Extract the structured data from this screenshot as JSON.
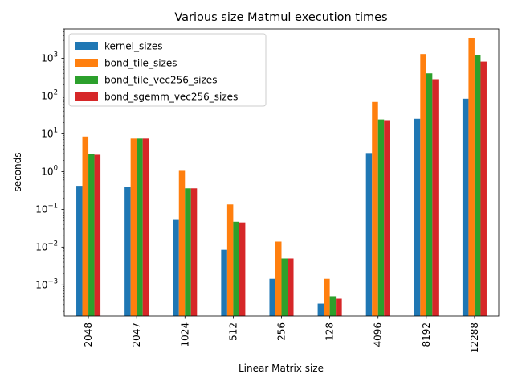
{
  "chart_data": {
    "type": "bar",
    "title": "Various size Matmul execution times",
    "xlabel": "Linear Matrix size",
    "ylabel": "seconds",
    "yscale": "log",
    "ylim": [
      0.00015,
      6000
    ],
    "yticks": [
      {
        "value": 0.001,
        "label": "10",
        "exp": "−3"
      },
      {
        "value": 0.01,
        "label": "10",
        "exp": "−2"
      },
      {
        "value": 0.1,
        "label": "10",
        "exp": "−1"
      },
      {
        "value": 1,
        "label": "10",
        "exp": "0"
      },
      {
        "value": 10,
        "label": "10",
        "exp": "1"
      },
      {
        "value": 100,
        "label": "10",
        "exp": "2"
      },
      {
        "value": 1000,
        "label": "10",
        "exp": "3"
      }
    ],
    "categories": [
      "2048",
      "2047",
      "1024",
      "512",
      "256",
      "128",
      "4096",
      "8192",
      "12288"
    ],
    "series": [
      {
        "name": "kernel_sizes",
        "color": "#1f77b4",
        "values": [
          0.42,
          0.4,
          0.055,
          0.0085,
          0.00145,
          0.00032,
          3.1,
          25,
          85
        ]
      },
      {
        "name": "bond_tile_sizes",
        "color": "#ff7f0e",
        "values": [
          8.5,
          7.5,
          1.05,
          0.135,
          0.014,
          0.00145,
          70,
          1300,
          3500
        ]
      },
      {
        "name": "bond_tile_vec256_sizes",
        "color": "#2ca02c",
        "values": [
          3.0,
          7.5,
          0.36,
          0.047,
          0.005,
          0.0005,
          24,
          400,
          1200
        ]
      },
      {
        "name": "bond_sgemm_vec256_sizes",
        "color": "#d62728",
        "values": [
          2.8,
          7.5,
          0.36,
          0.045,
          0.005,
          0.00043,
          23,
          280,
          820
        ]
      }
    ],
    "legend_position": "top-left",
    "grid": false
  }
}
